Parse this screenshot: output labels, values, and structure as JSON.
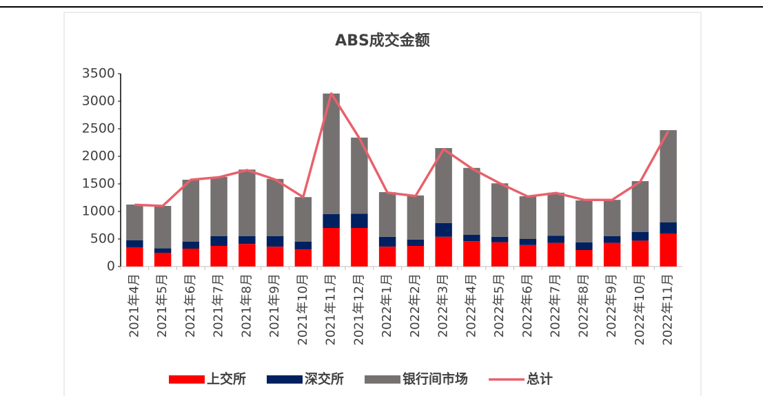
{
  "chart_data": {
    "type": "stacked-bar-line",
    "title": "ABS成交金额",
    "categories": [
      "2021年4月",
      "2021年5月",
      "2021年6月",
      "2021年7月",
      "2021年8月",
      "2021年9月",
      "2021年10月",
      "2021年11月",
      "2021年12月",
      "2022年1月",
      "2022年2月",
      "2022年3月",
      "2022年4月",
      "2022年5月",
      "2022年6月",
      "2022年7月",
      "2022年8月",
      "2022年9月",
      "2022年10月",
      "2022年11月"
    ],
    "series": [
      {
        "name": "上交所",
        "color": "#ff0000",
        "kind": "bar",
        "values": [
          350,
          250,
          325,
          375,
          410,
          360,
          310,
          700,
          700,
          360,
          375,
          540,
          460,
          440,
          390,
          430,
          300,
          430,
          470,
          600
        ]
      },
      {
        "name": "深交所",
        "color": "#002060",
        "kind": "bar",
        "values": [
          125,
          80,
          125,
          175,
          140,
          190,
          140,
          250,
          260,
          180,
          115,
          250,
          115,
          100,
          110,
          130,
          140,
          120,
          155,
          200
        ]
      },
      {
        "name": "银行间市场",
        "color": "#767171",
        "kind": "bar",
        "values": [
          650,
          770,
          1125,
          1075,
          1210,
          1040,
          810,
          2190,
          1380,
          810,
          800,
          1360,
          1215,
          970,
          775,
          780,
          760,
          660,
          925,
          1675
        ]
      },
      {
        "name": "总计",
        "color": "#e8616b",
        "kind": "line",
        "values": [
          1120,
          1100,
          1575,
          1620,
          1750,
          1580,
          1260,
          3140,
          2330,
          1340,
          1280,
          2130,
          1780,
          1510,
          1270,
          1335,
          1210,
          1210,
          1540,
          2460
        ]
      }
    ],
    "ylim": [
      0,
      3500
    ],
    "yticks": [
      0,
      500,
      1000,
      1500,
      2000,
      2500,
      3000,
      3500
    ],
    "grid": false
  }
}
